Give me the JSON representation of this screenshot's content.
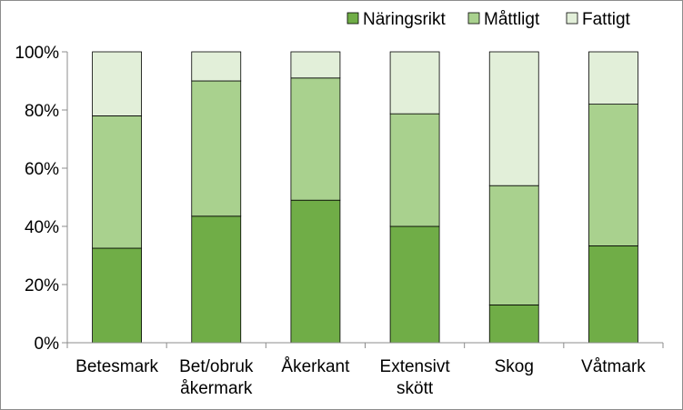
{
  "chart_data": {
    "type": "bar",
    "stacked": true,
    "percent": true,
    "categories": [
      [
        "Betesmark"
      ],
      [
        "Bet/obruk",
        "åkermark"
      ],
      [
        "Åkerkant"
      ],
      [
        "Extensivt",
        "skött"
      ],
      [
        "Skog"
      ],
      [
        "Våtmark"
      ]
    ],
    "series": [
      {
        "name": "Näringsrikt",
        "color": "#70ad47",
        "values": [
          32.5,
          43.5,
          49,
          40,
          13,
          33.3
        ]
      },
      {
        "name": "Måttligt",
        "color": "#a9d18e",
        "values": [
          45.5,
          46.5,
          42,
          38.7,
          41,
          48.7
        ]
      },
      {
        "name": "Fattigt",
        "color": "#e2efd9",
        "values": [
          22,
          10,
          9,
          21.3,
          46,
          18
        ]
      }
    ],
    "title": "",
    "xlabel": "",
    "ylabel": "",
    "ylim": [
      0,
      100
    ],
    "yticks": [
      "0%",
      "20%",
      "40%",
      "60%",
      "80%",
      "100%"
    ],
    "ytick_values": [
      0,
      20,
      40,
      60,
      80,
      100
    ],
    "grid": false,
    "legend_position": "top-right",
    "bar_edge_color": "#000000",
    "axis_color": "#8c8c8c"
  }
}
